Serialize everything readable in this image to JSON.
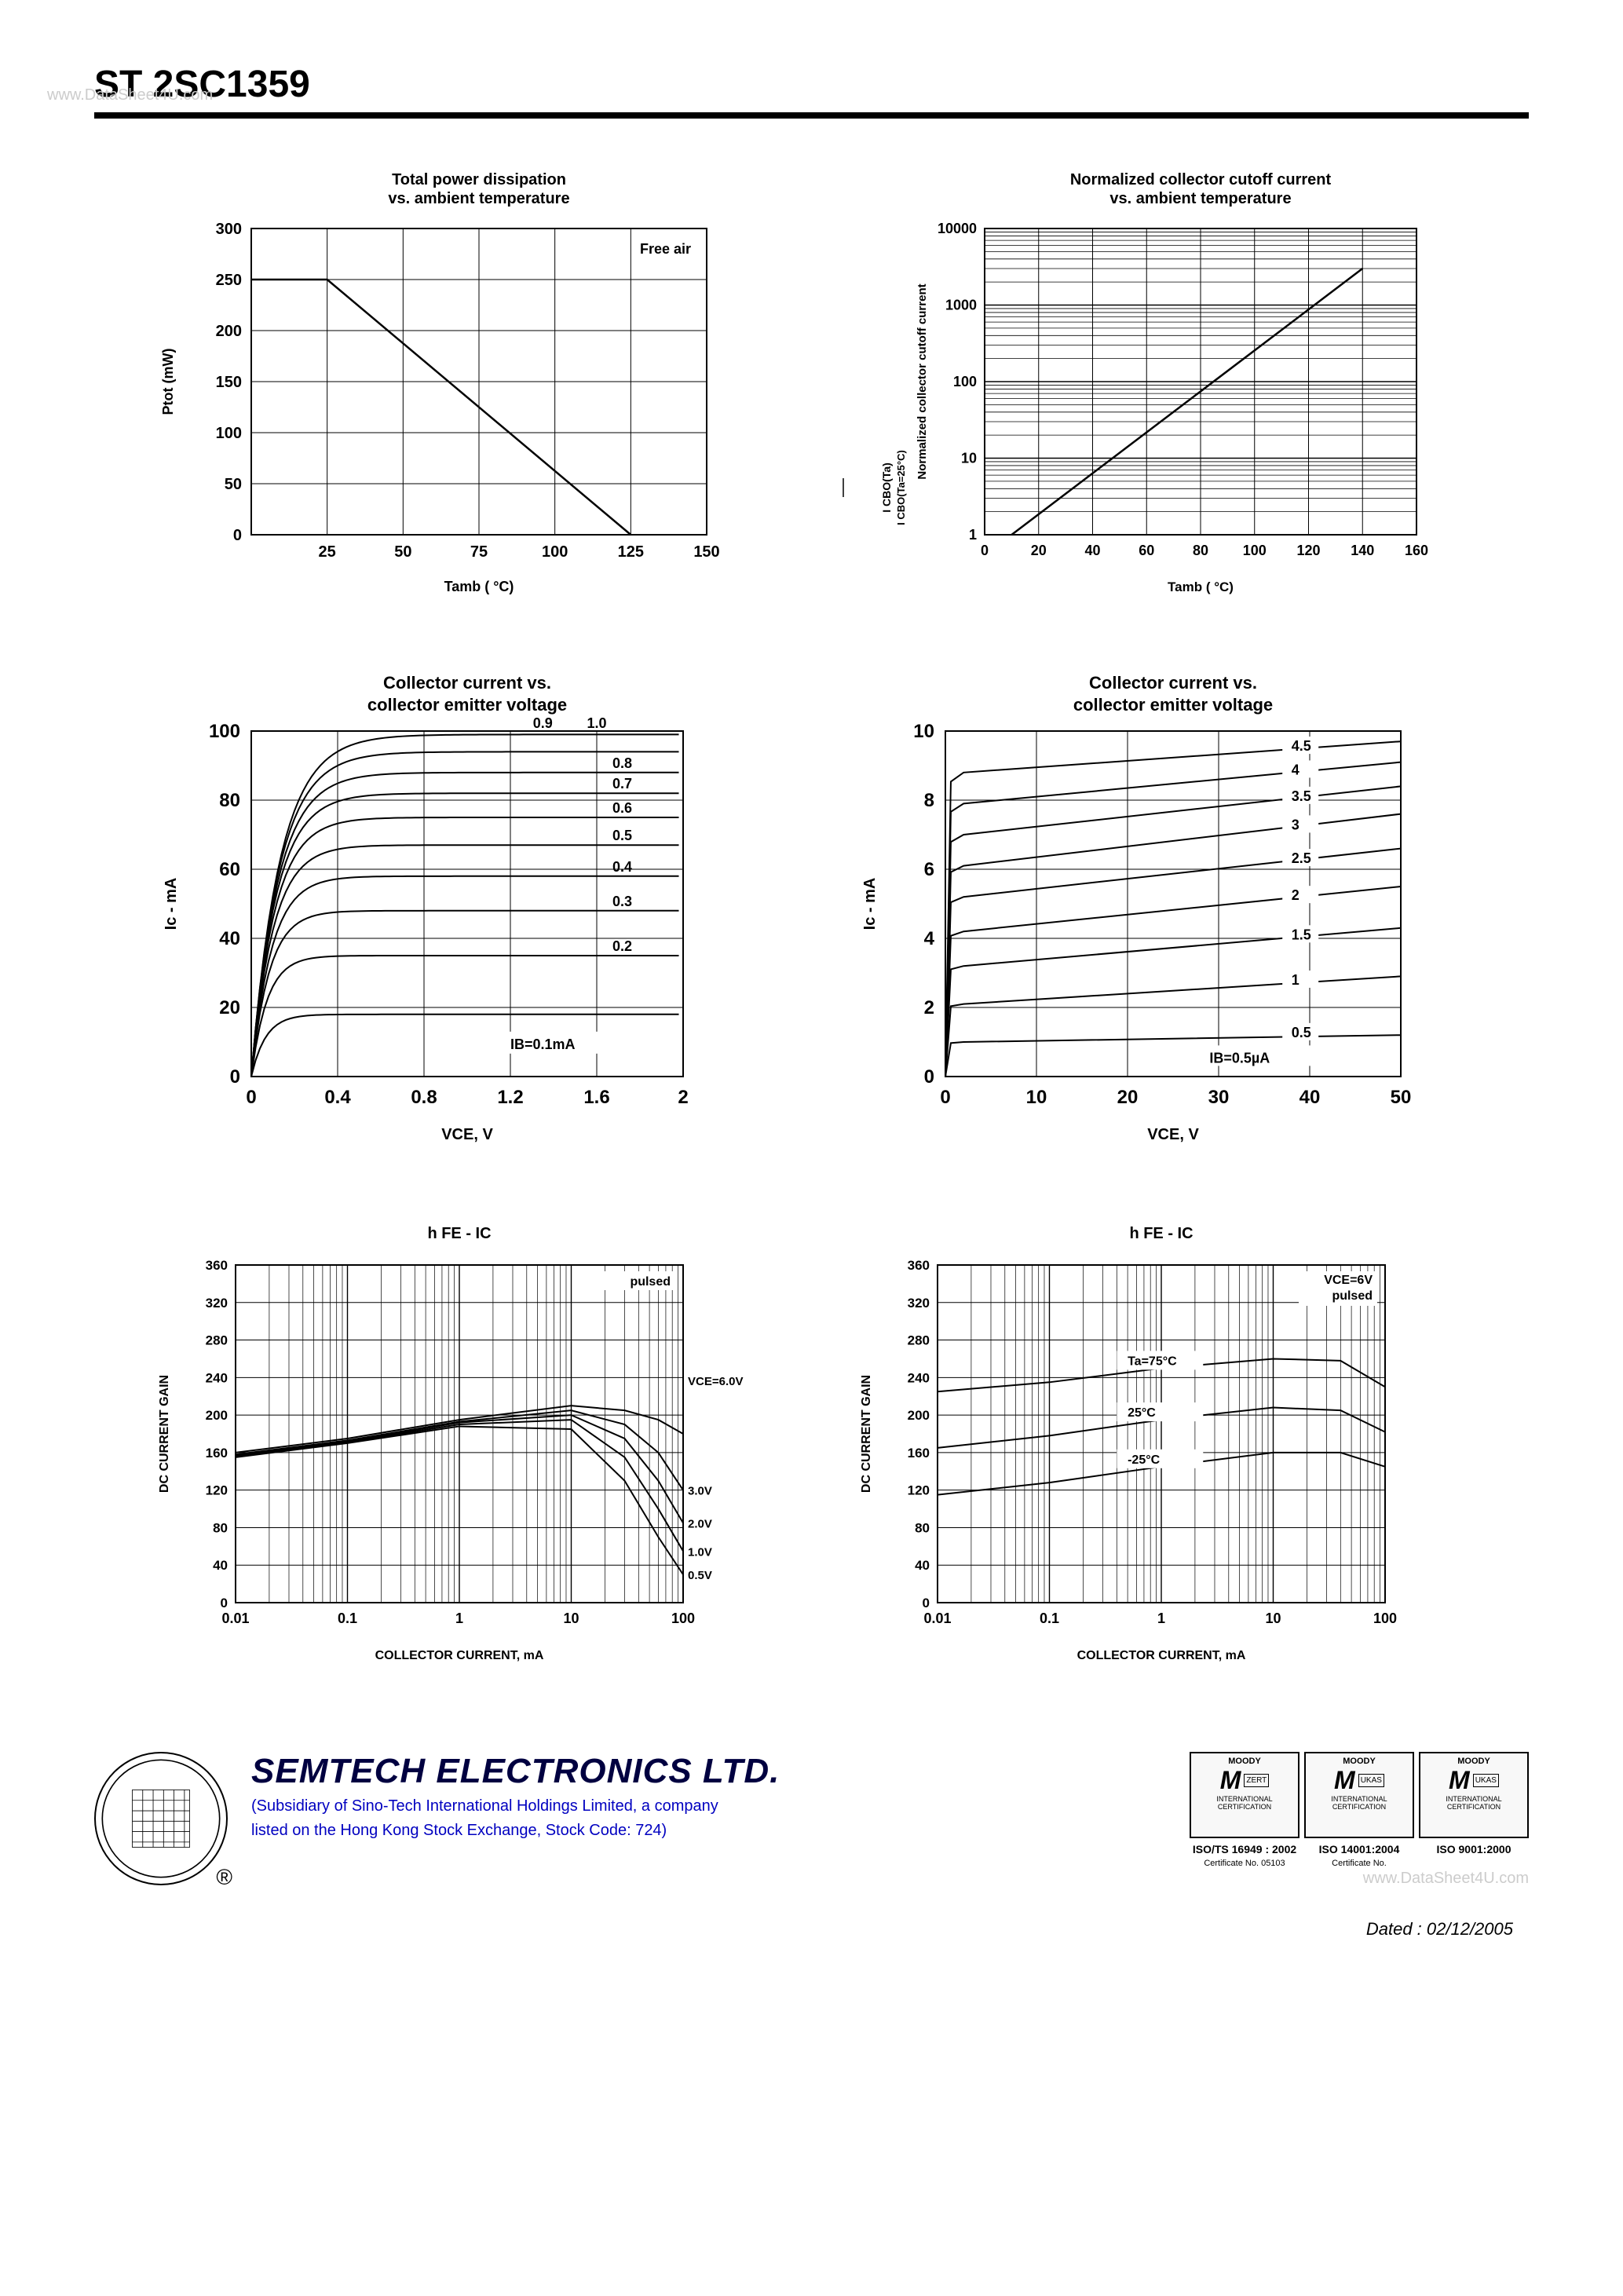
{
  "header": {
    "part_number": "ST 2SC1359",
    "watermark": "www.DataSheet4U.com"
  },
  "chart1": {
    "type": "line",
    "title_l1": "Total power dissipation",
    "title_l2": "vs. ambient temperature",
    "title_fontsize": 20,
    "annotation": "Free air",
    "xlabel": "Tamb ( °C)",
    "ylabel": "Ptot (mW)",
    "label_fontsize": 18,
    "xlim": [
      0,
      150
    ],
    "ylim": [
      0,
      300
    ],
    "xticks": [
      25,
      50,
      75,
      100,
      125,
      150
    ],
    "yticks": [
      0,
      50,
      100,
      150,
      200,
      250,
      300
    ],
    "line_color": "#000000",
    "grid_color": "#000000",
    "background_color": "#ffffff",
    "line_width": 2.5,
    "points": [
      [
        0,
        250
      ],
      [
        25,
        250
      ],
      [
        125,
        0
      ]
    ]
  },
  "chart2": {
    "type": "line",
    "title_l1": "Normalized collector cutoff current",
    "title_l2": "vs. ambient temperature",
    "title_fontsize": 20,
    "xlabel": "Tamb ( °C)",
    "ylabel": "Normalized collector cutoff current",
    "ylabel2_top": "I CBO(Ta)",
    "ylabel2_bottom": "I CBO(Ta=25°C)",
    "label_fontsize": 17,
    "xlim": [
      0,
      160
    ],
    "xticks": [
      0,
      20,
      40,
      60,
      80,
      100,
      120,
      140,
      160
    ],
    "yscale": "log",
    "ylim": [
      1,
      10000
    ],
    "yticks": [
      1,
      10,
      100,
      1000,
      10000
    ],
    "line_color": "#000000",
    "grid_color": "#000000",
    "line_width": 2.5,
    "points": [
      [
        10,
        1
      ],
      [
        140,
        3000
      ]
    ]
  },
  "chart3": {
    "type": "line-family",
    "title_l1": "Collector current vs.",
    "title_l2": "collector emitter voltage",
    "title_fontsize": 22,
    "xlabel": "VCE, V",
    "ylabel": "Ic - mA",
    "label_fontsize": 20,
    "xlim": [
      0,
      2.0
    ],
    "xticks": [
      0,
      0.4,
      0.8,
      1.2,
      1.6,
      2.0
    ],
    "ylim": [
      0,
      100
    ],
    "yticks": [
      0,
      20,
      40,
      60,
      80,
      100
    ],
    "line_color": "#000000",
    "grid_color": "#000000",
    "line_width": 2,
    "base_label": "IB=0.1mA",
    "series": [
      {
        "label": "0.1",
        "sat": 18,
        "knee": 0.2
      },
      {
        "label": "0.2",
        "sat": 35,
        "knee": 0.22
      },
      {
        "label": "0.3",
        "sat": 48,
        "knee": 0.25
      },
      {
        "label": "0.4",
        "sat": 58,
        "knee": 0.28
      },
      {
        "label": "0.5",
        "sat": 67,
        "knee": 0.3
      },
      {
        "label": "0.6",
        "sat": 75,
        "knee": 0.32
      },
      {
        "label": "0.7",
        "sat": 82,
        "knee": 0.34
      },
      {
        "label": "0.8",
        "sat": 88,
        "knee": 0.36
      },
      {
        "label": "0.9",
        "sat": 94,
        "knee": 0.38
      },
      {
        "label": "1.0",
        "sat": 99,
        "knee": 0.4
      }
    ]
  },
  "chart4": {
    "type": "line-family",
    "title_l1": "Collector current vs.",
    "title_l2": "collector emitter voltage",
    "title_fontsize": 22,
    "xlabel": "VCE, V",
    "ylabel": "Ic - mA",
    "label_fontsize": 20,
    "xlim": [
      0,
      50
    ],
    "xticks": [
      0,
      10,
      20,
      30,
      40,
      50
    ],
    "ylim": [
      0,
      10
    ],
    "yticks": [
      0,
      2,
      4,
      6,
      8,
      10
    ],
    "line_color": "#000000",
    "grid_color": "#000000",
    "line_width": 2,
    "base_label": "IB=0.5µA",
    "series": [
      {
        "label": "0.5",
        "y0": 1.0,
        "y1": 1.2
      },
      {
        "label": "1",
        "y0": 2.1,
        "y1": 2.9
      },
      {
        "label": "1.5",
        "y0": 3.2,
        "y1": 4.3
      },
      {
        "label": "2",
        "y0": 4.2,
        "y1": 5.5
      },
      {
        "label": "2.5",
        "y0": 5.2,
        "y1": 6.6
      },
      {
        "label": "3",
        "y0": 6.1,
        "y1": 7.6
      },
      {
        "label": "3.5",
        "y0": 7.0,
        "y1": 8.4
      },
      {
        "label": "4",
        "y0": 7.9,
        "y1": 9.1
      },
      {
        "label": "4.5",
        "y0": 8.8,
        "y1": 9.7
      }
    ]
  },
  "chart5": {
    "type": "line-family",
    "title": "h FE - IC",
    "title_fontsize": 20,
    "annotation": "pulsed",
    "xlabel": "COLLECTOR CURRENT, mA",
    "ylabel": "DC CURRENT GAIN",
    "label_fontsize": 16,
    "xscale": "log",
    "xlim": [
      0.01,
      100
    ],
    "xticks": [
      0.01,
      0.1,
      1,
      10,
      100
    ],
    "ylim": [
      0,
      360
    ],
    "yticks": [
      0,
      40,
      80,
      120,
      160,
      200,
      240,
      280,
      320,
      360
    ],
    "line_color": "#000000",
    "grid_color": "#000000",
    "line_width": 2,
    "series": [
      {
        "label": "VCE=6.0V",
        "pts": [
          [
            0.01,
            160
          ],
          [
            0.1,
            175
          ],
          [
            1,
            195
          ],
          [
            10,
            210
          ],
          [
            30,
            205
          ],
          [
            60,
            195
          ],
          [
            100,
            180
          ]
        ]
      },
      {
        "label": "3.0V",
        "pts": [
          [
            0.01,
            158
          ],
          [
            0.1,
            173
          ],
          [
            1,
            193
          ],
          [
            10,
            205
          ],
          [
            30,
            190
          ],
          [
            60,
            160
          ],
          [
            100,
            120
          ]
        ]
      },
      {
        "label": "2.0V",
        "pts": [
          [
            0.01,
            157
          ],
          [
            0.1,
            172
          ],
          [
            1,
            192
          ],
          [
            10,
            200
          ],
          [
            30,
            175
          ],
          [
            60,
            130
          ],
          [
            100,
            85
          ]
        ]
      },
      {
        "label": "1.0V",
        "pts": [
          [
            0.01,
            156
          ],
          [
            0.1,
            171
          ],
          [
            1,
            190
          ],
          [
            10,
            195
          ],
          [
            30,
            155
          ],
          [
            60,
            100
          ],
          [
            100,
            55
          ]
        ]
      },
      {
        "label": "0.5V",
        "pts": [
          [
            0.01,
            155
          ],
          [
            0.1,
            170
          ],
          [
            1,
            188
          ],
          [
            10,
            185
          ],
          [
            30,
            130
          ],
          [
            60,
            70
          ],
          [
            100,
            30
          ]
        ]
      }
    ]
  },
  "chart6": {
    "type": "line-family",
    "title": "h FE - IC",
    "title_fontsize": 20,
    "annot1": "VCE=6V",
    "annot2": "pulsed",
    "xlabel": "COLLECTOR CURRENT, mA",
    "ylabel": "DC CURRENT GAIN",
    "label_fontsize": 16,
    "xscale": "log",
    "xlim": [
      0.01,
      100
    ],
    "xticks": [
      0.01,
      0.1,
      1,
      10,
      100
    ],
    "ylim": [
      0,
      360
    ],
    "yticks": [
      0,
      40,
      80,
      120,
      160,
      200,
      240,
      280,
      320,
      360
    ],
    "line_color": "#000000",
    "grid_color": "#000000",
    "line_width": 2,
    "series": [
      {
        "label": "Ta=75°C",
        "pts": [
          [
            0.01,
            225
          ],
          [
            0.1,
            235
          ],
          [
            1,
            250
          ],
          [
            10,
            260
          ],
          [
            40,
            258
          ],
          [
            100,
            230
          ]
        ]
      },
      {
        "label": "25°C",
        "pts": [
          [
            0.01,
            165
          ],
          [
            0.1,
            178
          ],
          [
            1,
            195
          ],
          [
            10,
            208
          ],
          [
            40,
            205
          ],
          [
            100,
            182
          ]
        ]
      },
      {
        "label": "-25°C",
        "pts": [
          [
            0.01,
            115
          ],
          [
            0.1,
            128
          ],
          [
            1,
            145
          ],
          [
            10,
            160
          ],
          [
            40,
            160
          ],
          [
            100,
            145
          ]
        ]
      }
    ]
  },
  "footer": {
    "company": "SEMTECH ELECTRONICS LTD.",
    "subsidiary_l1": "(Subsidiary of Sino-Tech International Holdings Limited, a company",
    "subsidiary_l2": "listed on the Hong Kong Stock Exchange, Stock Code: 724)",
    "badges": [
      {
        "brand": "MOODY",
        "std": "ISO/TS 16949 : 2002",
        "cert": "Certificate No. 05103",
        "side": "ZERT"
      },
      {
        "brand": "MOODY",
        "std": "ISO 14001:2004",
        "cert": "Certificate No.",
        "side": "UKAS"
      },
      {
        "brand": "MOODY",
        "std": "ISO 9001:2000",
        "cert": "",
        "side": "UKAS"
      }
    ],
    "dated": "Dated : 02/12/2005",
    "watermark": "www.DataSheet4U.com"
  }
}
